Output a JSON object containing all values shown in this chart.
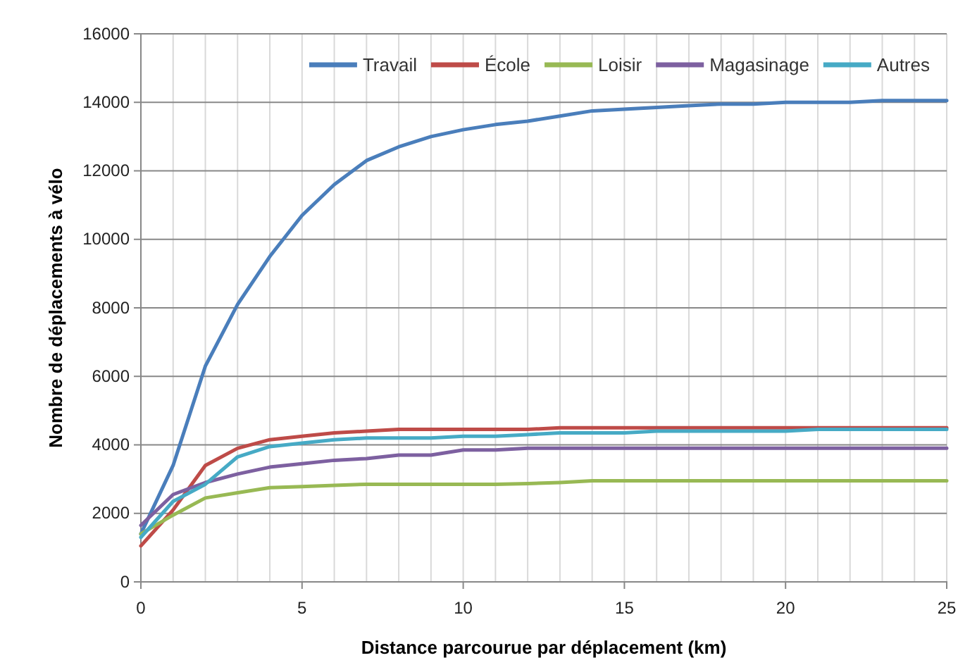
{
  "chart_data": {
    "type": "line",
    "xlabel": "Distance parcourue par déplacement (km)",
    "ylabel": "Nombre de déplacements à vélo",
    "x": [
      0,
      1,
      2,
      3,
      4,
      5,
      6,
      7,
      8,
      9,
      10,
      11,
      12,
      13,
      14,
      15,
      16,
      17,
      18,
      19,
      20,
      21,
      22,
      23,
      24,
      25
    ],
    "series": [
      {
        "name": "Travail",
        "color": "#4a7ebb",
        "values": [
          1400,
          3400,
          6300,
          8100,
          9500,
          10700,
          11600,
          12300,
          12700,
          13000,
          13200,
          13350,
          13450,
          13600,
          13750,
          13800,
          13850,
          13900,
          13950,
          13950,
          14000,
          14000,
          14000,
          14050,
          14050,
          14050
        ]
      },
      {
        "name": "École",
        "color": "#be4b48",
        "values": [
          1050,
          2100,
          3400,
          3900,
          4150,
          4250,
          4350,
          4400,
          4450,
          4450,
          4450,
          4450,
          4450,
          4500,
          4500,
          4500,
          4500,
          4500,
          4500,
          4500,
          4500,
          4500,
          4500,
          4500,
          4500,
          4500
        ]
      },
      {
        "name": "Loisir",
        "color": "#98b954",
        "values": [
          1400,
          1950,
          2450,
          2600,
          2750,
          2780,
          2820,
          2850,
          2850,
          2850,
          2850,
          2850,
          2870,
          2900,
          2950,
          2950,
          2950,
          2950,
          2950,
          2950,
          2950,
          2950,
          2950,
          2950,
          2950,
          2950
        ]
      },
      {
        "name": "Magasinage",
        "color": "#7d60a0",
        "values": [
          1650,
          2550,
          2900,
          3150,
          3350,
          3450,
          3550,
          3600,
          3700,
          3700,
          3850,
          3850,
          3900,
          3900,
          3900,
          3900,
          3900,
          3900,
          3900,
          3900,
          3900,
          3900,
          3900,
          3900,
          3900,
          3900
        ]
      },
      {
        "name": "Autres",
        "color": "#46aac5",
        "values": [
          1300,
          2350,
          2850,
          3650,
          3950,
          4050,
          4150,
          4200,
          4200,
          4200,
          4250,
          4250,
          4300,
          4350,
          4350,
          4350,
          4400,
          4400,
          4400,
          4400,
          4400,
          4450,
          4450,
          4450,
          4450,
          4450
        ]
      }
    ],
    "xlim": [
      0,
      25
    ],
    "xticks": [
      0,
      5,
      10,
      15,
      20,
      25
    ],
    "ylim": [
      0,
      16000
    ],
    "yticks": [
      0,
      2000,
      4000,
      6000,
      8000,
      10000,
      12000,
      14000,
      16000
    ],
    "grid": true,
    "legend": "top right",
    "marker": "none",
    "line_style": "solid"
  }
}
